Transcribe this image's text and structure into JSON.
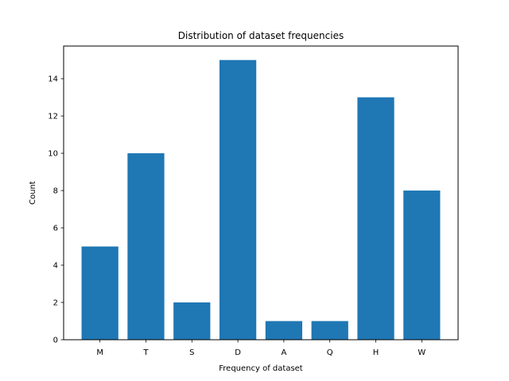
{
  "chart_data": {
    "type": "bar",
    "title": "Distribution of dataset frequencies",
    "xlabel": "Frequency of dataset",
    "ylabel": "Count",
    "categories": [
      "M",
      "T",
      "S",
      "D",
      "A",
      "Q",
      "H",
      "W"
    ],
    "values": [
      5,
      10,
      2,
      15,
      1,
      1,
      13,
      8
    ],
    "ylim": [
      0,
      15.75
    ],
    "yticks": [
      0,
      2,
      4,
      6,
      8,
      10,
      12,
      14
    ],
    "bar_color": "#1f77b4",
    "grid": false,
    "legend": "none"
  }
}
